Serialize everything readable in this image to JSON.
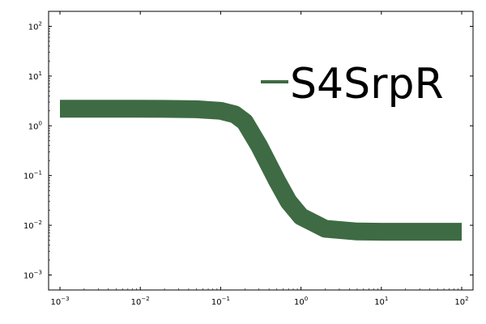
{
  "chart_data": {
    "type": "line",
    "title": "",
    "xlabel": "",
    "ylabel": "",
    "x_scale": "log",
    "y_scale": "log",
    "xlim": [
      0.001,
      100
    ],
    "ylim": [
      0.0005,
      200
    ],
    "grid": false,
    "legend_position": "top-right",
    "x_ticks": [
      {
        "base": "10",
        "exp": "−3",
        "value": 0.001
      },
      {
        "base": "10",
        "exp": "−2",
        "value": 0.01
      },
      {
        "base": "10",
        "exp": "−1",
        "value": 0.1
      },
      {
        "base": "10",
        "exp": "0",
        "value": 1
      },
      {
        "base": "10",
        "exp": "1",
        "value": 10
      },
      {
        "base": "10",
        "exp": "2",
        "value": 100
      }
    ],
    "y_ticks": [
      {
        "base": "10",
        "exp": "−3",
        "value": 0.001
      },
      {
        "base": "10",
        "exp": "−2",
        "value": 0.01
      },
      {
        "base": "10",
        "exp": "−1",
        "value": 0.1
      },
      {
        "base": "10",
        "exp": "0",
        "value": 1
      },
      {
        "base": "10",
        "exp": "1",
        "value": 10
      },
      {
        "base": "10",
        "exp": "2",
        "value": 100
      }
    ],
    "series": [
      {
        "name": "S4SrpR",
        "color": "#3e6b43",
        "x": [
          0.001,
          0.002,
          0.005,
          0.01,
          0.02,
          0.05,
          0.1,
          0.15,
          0.2,
          0.3,
          0.5,
          0.7,
          1,
          2,
          5,
          10,
          20,
          50,
          100
        ],
        "y": [
          2.2,
          2.2,
          2.2,
          2.2,
          2.19,
          2.15,
          2.0,
          1.7,
          1.2,
          0.4,
          0.08,
          0.03,
          0.015,
          0.0085,
          0.0075,
          0.0074,
          0.0074,
          0.0074,
          0.0074
        ]
      }
    ]
  }
}
